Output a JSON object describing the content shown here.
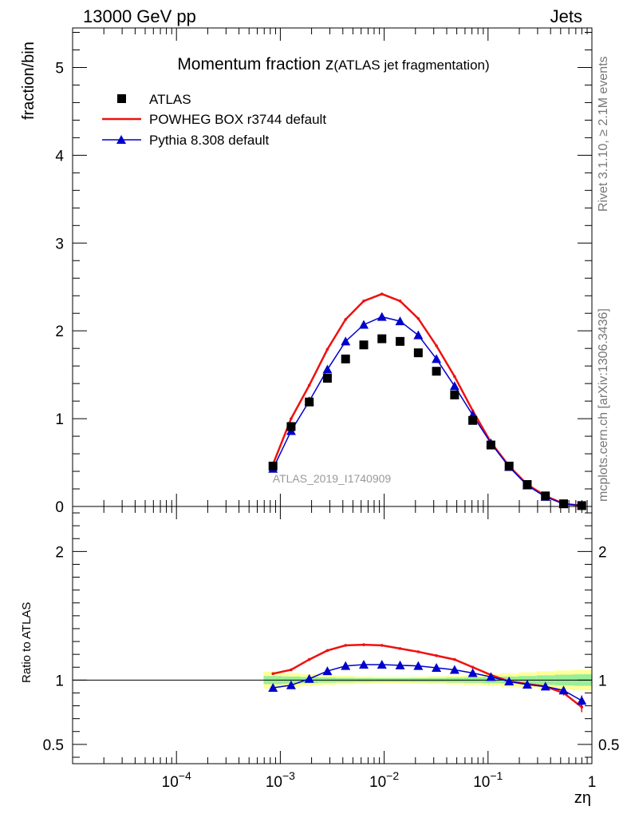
{
  "header": {
    "left": "13000 GeV pp",
    "right": "Jets"
  },
  "side_labels": {
    "rivet": "Rivet 3.1.10, ≥ 2.1M events",
    "site": "mcplots.cern.ch [arXiv:1306.3436]"
  },
  "chart_data": [
    {
      "type": "line",
      "panel": "main",
      "title_main": "Momentum fraction z",
      "title_sub": "(ATLAS jet fragmentation)",
      "analysis_label": "ATLAS_2019_I1740909",
      "ylabel": "fraction/bin",
      "xscale": "log",
      "xlim": [
        1e-05,
        1
      ],
      "ylim": [
        0,
        5.45
      ],
      "yticks": [
        0,
        1,
        2,
        3,
        4,
        5
      ],
      "ytick_labels": [
        "0",
        "1",
        "2",
        "3",
        "4",
        "5"
      ],
      "legend_position": "top-left",
      "x": [
        0.00085,
        0.00127,
        0.0019,
        0.00284,
        0.00425,
        0.00636,
        0.00951,
        0.01423,
        0.0213,
        0.03185,
        0.04764,
        0.07126,
        0.1066,
        0.1595,
        0.2385,
        0.3568,
        0.5337,
        0.7983
      ],
      "series": [
        {
          "name": "ATLAS",
          "style": "marker-square",
          "color": "#000000",
          "values": [
            0.46,
            0.91,
            1.19,
            1.46,
            1.68,
            1.84,
            1.91,
            1.88,
            1.75,
            1.54,
            1.27,
            0.98,
            0.7,
            0.46,
            0.25,
            0.12,
            0.03,
            0.01
          ]
        },
        {
          "name": "POWHEG BOX r3744 default",
          "style": "line",
          "color": "#ee1111",
          "values": [
            0.48,
            1.0,
            1.38,
            1.79,
            2.13,
            2.34,
            2.42,
            2.34,
            2.14,
            1.83,
            1.48,
            1.09,
            0.73,
            0.46,
            0.25,
            0.12,
            0.03,
            0.01
          ]
        },
        {
          "name": "Pythia 8.308 default",
          "style": "line-triangle",
          "color": "#0000cc",
          "values": [
            0.43,
            0.86,
            1.2,
            1.56,
            1.88,
            2.07,
            2.16,
            2.11,
            1.95,
            1.68,
            1.37,
            1.04,
            0.72,
            0.45,
            0.24,
            0.11,
            0.03,
            0.01
          ]
        }
      ]
    },
    {
      "type": "line",
      "panel": "ratio",
      "ylabel": "Ratio to ATLAS",
      "xlabel": "zη",
      "xscale": "log",
      "xlim": [
        1e-05,
        1
      ],
      "ylim": [
        0.35,
        2.35
      ],
      "yticks": [
        0.5,
        1,
        2
      ],
      "ytick_labels": [
        "0.5",
        "1",
        "2"
      ],
      "xticks": [
        0.0001,
        0.001,
        0.01,
        0.1,
        1
      ],
      "xtick_labels": [
        {
          "base": "10",
          "exp": "−4"
        },
        {
          "base": "10",
          "exp": "−3"
        },
        {
          "base": "10",
          "exp": "−2"
        },
        {
          "base": "10",
          "exp": "−1"
        },
        {
          "base": "1",
          "exp": ""
        }
      ],
      "reference_line": 1,
      "x": [
        0.00085,
        0.00127,
        0.0019,
        0.00284,
        0.00425,
        0.00636,
        0.00951,
        0.01423,
        0.0213,
        0.03185,
        0.04764,
        0.07126,
        0.1066,
        0.1595,
        0.2385,
        0.3568,
        0.5337,
        0.7983
      ],
      "band_edges": [
        0.00069,
        0.00104,
        0.00156,
        0.00233,
        0.00349,
        0.00522,
        0.00781,
        0.01169,
        0.0175,
        0.02619,
        0.0392,
        0.05867,
        0.08781,
        0.1314,
        0.1967,
        0.2944,
        0.4406,
        0.6594,
        1.0
      ],
      "band_inner_halfwidth": [
        0.032,
        0.028,
        0.024,
        0.02,
        0.018,
        0.016,
        0.015,
        0.015,
        0.016,
        0.017,
        0.019,
        0.021,
        0.024,
        0.027,
        0.032,
        0.037,
        0.042,
        0.045
      ],
      "band_outer_halfwidth": [
        0.065,
        0.055,
        0.045,
        0.038,
        0.032,
        0.028,
        0.026,
        0.026,
        0.027,
        0.03,
        0.034,
        0.038,
        0.045,
        0.052,
        0.06,
        0.068,
        0.075,
        0.08
      ],
      "series": [
        {
          "name": "POWHEG BOX r3744 default",
          "color": "#ee1111",
          "values": [
            1.05,
            1.08,
            1.16,
            1.23,
            1.27,
            1.275,
            1.27,
            1.245,
            1.22,
            1.19,
            1.16,
            1.1,
            1.04,
            0.99,
            0.97,
            0.95,
            0.9,
            0.79
          ],
          "errors": [
            0.005,
            0.005,
            0.005,
            0.005,
            0.005,
            0.005,
            0.005,
            0.005,
            0.005,
            0.005,
            0.005,
            0.005,
            0.005,
            0.006,
            0.008,
            0.012,
            0.02,
            0.04
          ]
        },
        {
          "name": "Pythia 8.308 default",
          "color": "#0000cc",
          "values": [
            0.94,
            0.96,
            1.01,
            1.07,
            1.11,
            1.12,
            1.12,
            1.115,
            1.11,
            1.095,
            1.08,
            1.055,
            1.025,
            0.99,
            0.965,
            0.95,
            0.92,
            0.84
          ],
          "errors": [
            0.005,
            0.005,
            0.005,
            0.005,
            0.005,
            0.005,
            0.005,
            0.005,
            0.005,
            0.005,
            0.005,
            0.005,
            0.005,
            0.006,
            0.008,
            0.012,
            0.02,
            0.04
          ]
        }
      ]
    }
  ]
}
